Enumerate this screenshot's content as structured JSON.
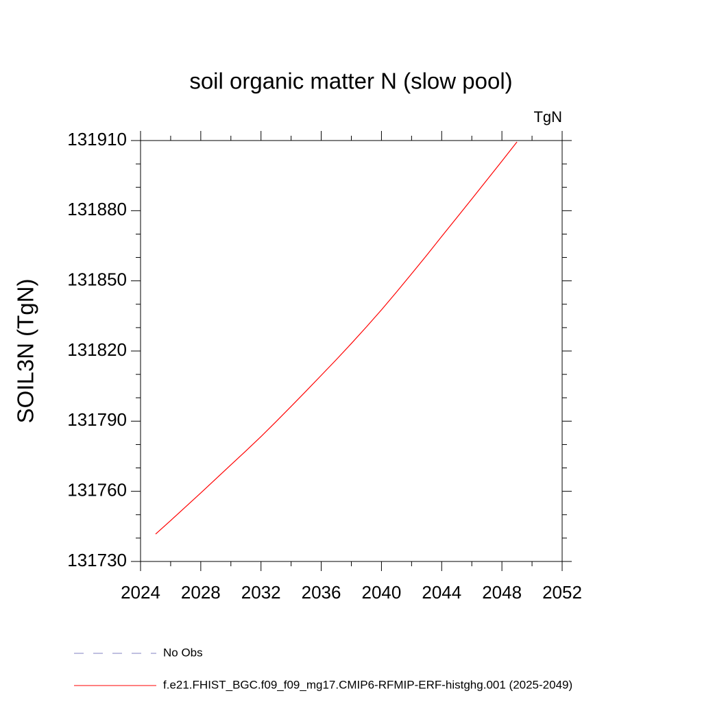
{
  "chart_data": {
    "type": "line",
    "title": "soil organic matter N (slow pool)",
    "units": "TgN",
    "y_label": "SOIL3N  (TgN)",
    "x": [
      2025,
      2026,
      2027,
      2028,
      2029,
      2030,
      2031,
      2032,
      2033,
      2034,
      2035,
      2036,
      2037,
      2038,
      2039,
      2040,
      2041,
      2042,
      2043,
      2044,
      2045,
      2046,
      2047,
      2048,
      2049
    ],
    "series": [
      {
        "name": "No Obs",
        "color": "#8080c0",
        "dashed": true,
        "values": [
          null,
          null,
          null,
          null,
          null,
          null,
          null,
          null,
          null,
          null,
          null,
          null,
          null,
          null,
          null,
          null,
          null,
          null,
          null,
          null,
          null,
          null,
          null,
          null,
          null
        ]
      },
      {
        "name": "f.e21.FHIST_BGC.f09_f09_mg17.CMIP6-RFMIP-ERF-histghg.001 (2025-2049)",
        "color": "#ff0000",
        "dashed": false,
        "values": [
          131741.7,
          131747.5,
          131753.4,
          131759.3,
          131765.3,
          131771.3,
          131777.3,
          131783.4,
          131789.8,
          131796.3,
          131802.9,
          131809.6,
          131816.3,
          131823.2,
          131830.3,
          131837.6,
          131845.2,
          131853.0,
          131860.9,
          131869.0,
          131877.0,
          131885.0,
          131893.1,
          131901.2,
          131909.4
        ]
      }
    ],
    "xlim": [
      2024,
      2052
    ],
    "xticks": [
      2024,
      2028,
      2032,
      2036,
      2040,
      2044,
      2048,
      2052
    ],
    "xminorticks": [
      2026,
      2030,
      2034,
      2038,
      2042,
      2046,
      2050
    ],
    "ylim": [
      131730,
      131910
    ],
    "yticks": [
      131730,
      131760,
      131790,
      131820,
      131850,
      131880,
      131910
    ],
    "yminorticks": [
      131740,
      131750,
      131770,
      131780,
      131800,
      131810,
      131830,
      131840,
      131860,
      131870,
      131890,
      131900
    ],
    "grid": false
  }
}
